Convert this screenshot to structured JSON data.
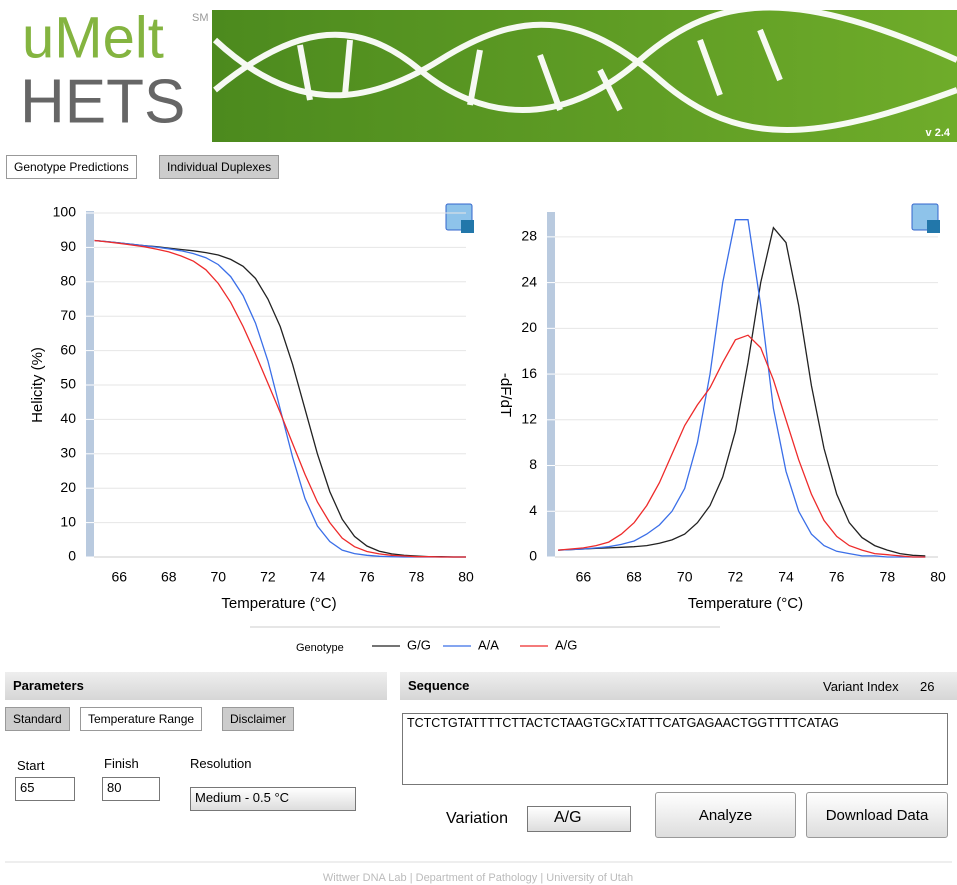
{
  "header": {
    "logo_top": "uMelt",
    "logo_mark": "SM",
    "logo_bottom": "HETS",
    "version": "v 2.4"
  },
  "tabs": [
    "Genotype Predictions",
    "Individual Duplexes"
  ],
  "chart_data": [
    {
      "type": "line",
      "x_label": "Temperature (°C)",
      "y_label": "Helicity (%)",
      "legend_title": "Genotype",
      "x": [
        65,
        65.5,
        66,
        66.5,
        67,
        67.5,
        68,
        68.5,
        69,
        69.5,
        70,
        70.5,
        71,
        71.5,
        72,
        72.5,
        73,
        73.5,
        74,
        74.5,
        75,
        75.5,
        76,
        76.5,
        77,
        77.5,
        78,
        78.5,
        79,
        79.5,
        80
      ],
      "series": [
        {
          "name": "G/G",
          "color": "#222222",
          "values": [
            92,
            91.7,
            91.3,
            90.9,
            90.5,
            90.2,
            89.8,
            89.4,
            89,
            88.5,
            87.8,
            86.5,
            84.5,
            81,
            75,
            67,
            56,
            43,
            30,
            19,
            11,
            6,
            3.2,
            1.7,
            0.9,
            0.5,
            0.3,
            0.1,
            0.1,
            0,
            0
          ]
        },
        {
          "name": "A/A",
          "color": "#3b6fe8",
          "values": [
            92,
            91.7,
            91.3,
            90.9,
            90.5,
            90.1,
            89.6,
            89,
            88.2,
            87,
            85,
            81.5,
            76,
            68,
            57,
            43,
            29,
            17,
            9,
            4.5,
            2,
            1,
            0.5,
            0.2,
            0.1,
            0,
            0,
            0,
            0,
            0,
            0
          ]
        },
        {
          "name": "A/G",
          "color": "#ee2b2b",
          "values": [
            92,
            91.6,
            91.2,
            90.7,
            90.2,
            89.5,
            88.7,
            87.5,
            86,
            83.5,
            79.5,
            74,
            67,
            59,
            50.5,
            42,
            33,
            24,
            16,
            10,
            5.5,
            3,
            1.6,
            0.9,
            0.5,
            0.3,
            0.1,
            0.1,
            0,
            0,
            0
          ]
        }
      ],
      "xlim": [
        64.9,
        80
      ],
      "xticks": [
        66,
        68,
        70,
        72,
        74,
        76,
        78,
        80
      ],
      "ylim": [
        0,
        100
      ],
      "yticks": [
        0,
        10,
        20,
        30,
        40,
        50,
        60,
        70,
        80,
        90,
        100
      ],
      "grid": true
    },
    {
      "type": "line",
      "x_label": "Temperature (°C)",
      "y_label": "-dF/dT",
      "x": [
        65,
        65.5,
        66,
        66.5,
        67,
        67.5,
        68,
        68.5,
        69,
        69.5,
        70,
        70.5,
        71,
        71.5,
        72,
        72.5,
        73,
        73.5,
        74,
        74.5,
        75,
        75.5,
        76,
        76.5,
        77,
        77.5,
        78,
        78.5,
        79,
        79.5
      ],
      "series": [
        {
          "name": "G/G",
          "color": "#222222",
          "values": [
            0.6,
            0.65,
            0.7,
            0.75,
            0.8,
            0.85,
            0.9,
            1,
            1.2,
            1.5,
            2,
            3,
            4.5,
            7,
            11,
            17,
            24,
            28.8,
            27.5,
            22,
            15,
            9.5,
            5.5,
            3,
            1.7,
            1,
            0.6,
            0.3,
            0.15,
            0.1
          ]
        },
        {
          "name": "A/A",
          "color": "#3b6fe8",
          "values": [
            0.6,
            0.65,
            0.7,
            0.8,
            0.9,
            1.1,
            1.4,
            2,
            2.8,
            4,
            6,
            10,
            16,
            24,
            29.5,
            29.5,
            22,
            13,
            7.5,
            4,
            2,
            1,
            0.5,
            0.3,
            0.1,
            0.1,
            0,
            0,
            0,
            0
          ]
        },
        {
          "name": "A/G",
          "color": "#ee2b2b",
          "values": [
            0.6,
            0.7,
            0.8,
            1,
            1.3,
            2,
            3,
            4.5,
            6.5,
            9,
            11.5,
            13.3,
            14.8,
            17,
            19,
            19.4,
            18.3,
            15.5,
            12,
            8.5,
            5.5,
            3.2,
            1.8,
            1,
            0.6,
            0.3,
            0.2,
            0.1,
            0,
            0
          ]
        }
      ],
      "xlim": [
        64.8,
        80
      ],
      "xticks": [
        66,
        68,
        70,
        72,
        74,
        76,
        78,
        80
      ],
      "ylim": [
        0,
        30
      ],
      "yticks": [
        0,
        4,
        8,
        12,
        16,
        20,
        24,
        28
      ],
      "grid": true
    }
  ],
  "parameters": {
    "title": "Parameters",
    "tabs": [
      "Standard",
      "Temperature Range",
      "Disclaimer"
    ],
    "start_label": "Start",
    "start": 65,
    "finish_label": "Finish",
    "finish": 80,
    "resolution_label": "Resolution",
    "resolution": "Medium - 0.5 °C"
  },
  "sequence": {
    "title": "Sequence",
    "variant_index_label": "Variant Index",
    "variant_index": 26,
    "text": "TCTCTGTATTTTCTTACTCTAAGTGCxTATTTCATGAGAACTGGTTTTCATAG",
    "variation_label": "Variation",
    "variation": "A/G",
    "buttons": [
      "Analyze",
      "Download Data"
    ]
  },
  "footer": "Wittwer DNA Lab | Department of Pathology | University of Utah"
}
